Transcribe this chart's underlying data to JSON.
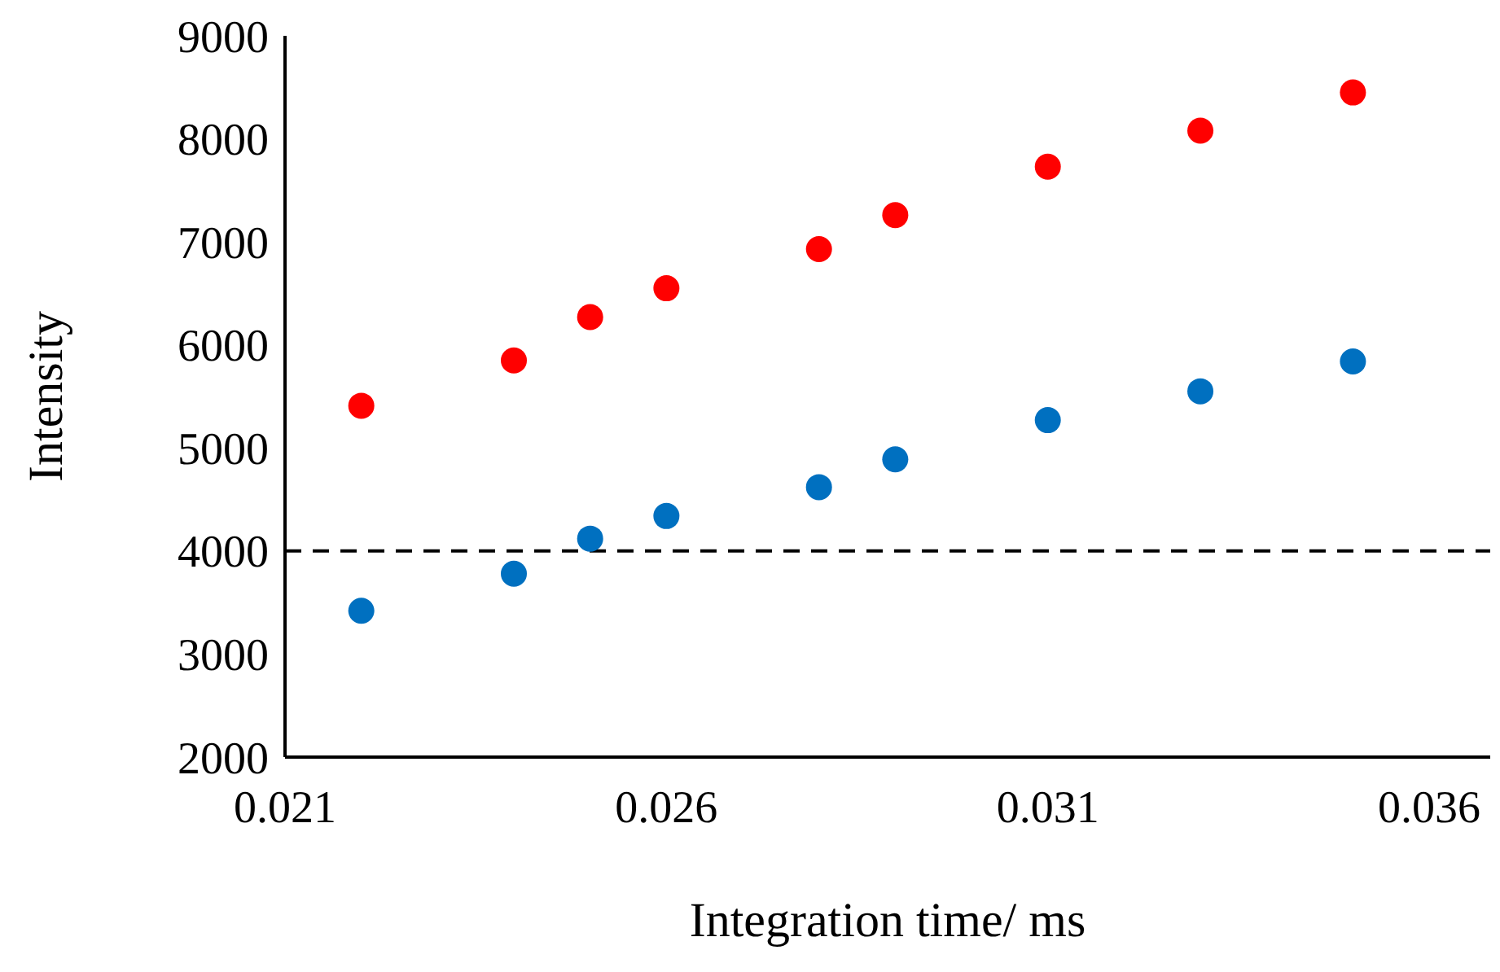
{
  "chart_data": {
    "type": "scatter",
    "xlabel": "Integration time/ ms",
    "ylabel": "Intensity",
    "x": [
      0.022,
      0.024,
      0.025,
      0.026,
      0.028,
      0.029,
      0.031,
      0.033,
      0.035
    ],
    "series": [
      {
        "color": "#ff0000",
        "values": [
          5410,
          5850,
          6270,
          6550,
          6930,
          7260,
          7730,
          8080,
          8450
        ]
      },
      {
        "color": "#0070c0",
        "values": [
          3420,
          3780,
          4120,
          4340,
          4620,
          4890,
          5270,
          5550,
          5840
        ]
      }
    ],
    "xlim": [
      0.021,
      0.0368
    ],
    "xticks": [
      0.021,
      0.026,
      0.031,
      0.036
    ],
    "ylim": [
      2000,
      9000
    ],
    "yticks": [
      2000,
      3000,
      4000,
      5000,
      6000,
      7000,
      8000,
      9000
    ],
    "ref_lines": [
      {
        "axis": "y",
        "value": 4000,
        "color": "#000000",
        "line_style": "dashed"
      }
    ],
    "grid": false,
    "marker": "circle"
  }
}
